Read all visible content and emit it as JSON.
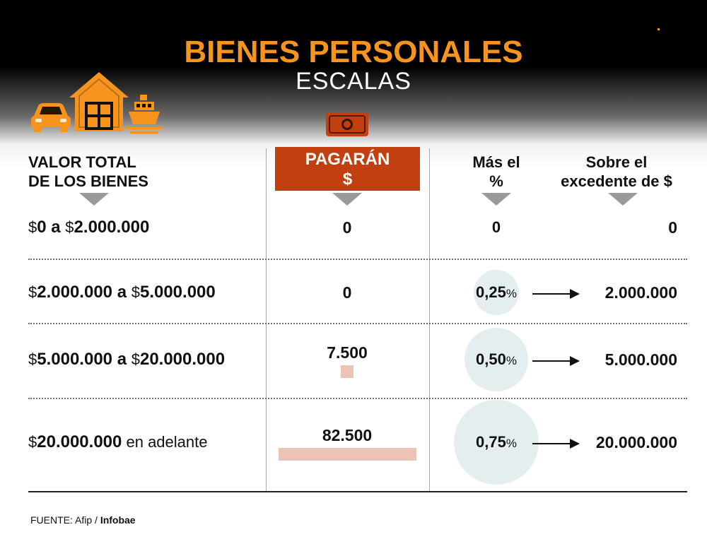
{
  "header": {
    "title": "BIENES PERSONALES",
    "subtitle": "ESCALAS"
  },
  "colors": {
    "title": "#f7941d",
    "icons": "#f7941d",
    "pay_header": "#c2400f",
    "bar": "#ecc4b6",
    "circle": "#e5eeee"
  },
  "icons": [
    "car-icon",
    "house-icon",
    "ship-icon",
    "banknote-icon"
  ],
  "columns": {
    "range": [
      "VALOR TOTAL",
      "DE LOS BIENES"
    ],
    "pay": [
      "PAGARÁN",
      "$"
    ],
    "pct": [
      "Más el",
      "%"
    ],
    "exc": [
      "Sobre el",
      "excedente de $"
    ]
  },
  "chart_data": {
    "type": "table",
    "rows": [
      {
        "range_prefix1": "$",
        "range_from": "0",
        "range_join": " a ",
        "range_prefix2": "$",
        "range_to": "2.000.000",
        "range_suffix": "",
        "pay_label": "0",
        "pay_value": 0,
        "pct_value": "0",
        "pct_unit": "",
        "pct_num": 0,
        "excess": "0",
        "arrow": false
      },
      {
        "range_prefix1": "$",
        "range_from": "2.000.000",
        "range_join": " a ",
        "range_prefix2": "$",
        "range_to": "5.000.000",
        "range_suffix": "",
        "pay_label": "0",
        "pay_value": 0,
        "pct_value": "0,25",
        "pct_unit": "%",
        "pct_num": 0.25,
        "excess": "2.000.000",
        "arrow": true
      },
      {
        "range_prefix1": "$",
        "range_from": "5.000.000",
        "range_join": " a ",
        "range_prefix2": "$",
        "range_to": "20.000.000",
        "range_suffix": "",
        "pay_label": "7.500",
        "pay_value": 7500,
        "pct_value": "0,50",
        "pct_unit": "%",
        "pct_num": 0.5,
        "excess": "5.000.000",
        "arrow": true
      },
      {
        "range_prefix1": "$",
        "range_from": "20.000.000",
        "range_join": "",
        "range_prefix2": "",
        "range_to": "",
        "range_suffix": " en adelante",
        "pay_label": "82.500",
        "pay_value": 82500,
        "pct_value": "0,75",
        "pct_unit": "%",
        "pct_num": 0.75,
        "excess": "20.000.000",
        "arrow": true
      }
    ]
  },
  "source": {
    "label": "FUENTE: Afip / ",
    "brand": "Infobae"
  }
}
